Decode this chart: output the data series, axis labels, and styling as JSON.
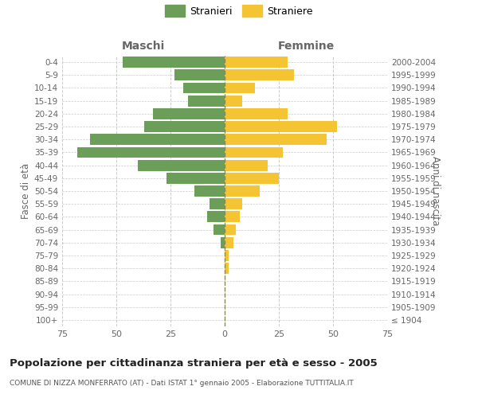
{
  "age_groups": [
    "100+",
    "95-99",
    "90-94",
    "85-89",
    "80-84",
    "75-79",
    "70-74",
    "65-69",
    "60-64",
    "55-59",
    "50-54",
    "45-49",
    "40-44",
    "35-39",
    "30-34",
    "25-29",
    "20-24",
    "15-19",
    "10-14",
    "5-9",
    "0-4"
  ],
  "birth_years": [
    "≤ 1904",
    "1905-1909",
    "1910-1914",
    "1915-1919",
    "1920-1924",
    "1925-1929",
    "1930-1934",
    "1935-1939",
    "1940-1944",
    "1945-1949",
    "1950-1954",
    "1955-1959",
    "1960-1964",
    "1965-1969",
    "1970-1974",
    "1975-1979",
    "1980-1984",
    "1985-1989",
    "1990-1994",
    "1995-1999",
    "2000-2004"
  ],
  "males": [
    0,
    0,
    0,
    0,
    0,
    0,
    2,
    5,
    8,
    7,
    14,
    27,
    40,
    68,
    62,
    37,
    33,
    17,
    19,
    23,
    47
  ],
  "females": [
    0,
    0,
    0,
    0,
    2,
    2,
    4,
    5,
    7,
    8,
    16,
    25,
    20,
    27,
    47,
    52,
    29,
    8,
    14,
    32,
    29
  ],
  "male_color": "#6b9e58",
  "female_color": "#f5c432",
  "bar_height": 0.85,
  "xlim": 75,
  "title": "Popolazione per cittadinanza straniera per età e sesso - 2005",
  "subtitle": "COMUNE DI NIZZA MONFERRATO (AT) - Dati ISTAT 1° gennaio 2005 - Elaborazione TUTTITALIA.IT",
  "ylabel_left": "Fasce di età",
  "ylabel_right": "Anni di nascita",
  "xlabel_left": "Maschi",
  "xlabel_right": "Femmine",
  "legend_stranieri": "Stranieri",
  "legend_straniere": "Straniere",
  "bg_color": "#ffffff",
  "grid_color": "#cccccc",
  "label_color": "#666666",
  "center_line_color": "#888855"
}
